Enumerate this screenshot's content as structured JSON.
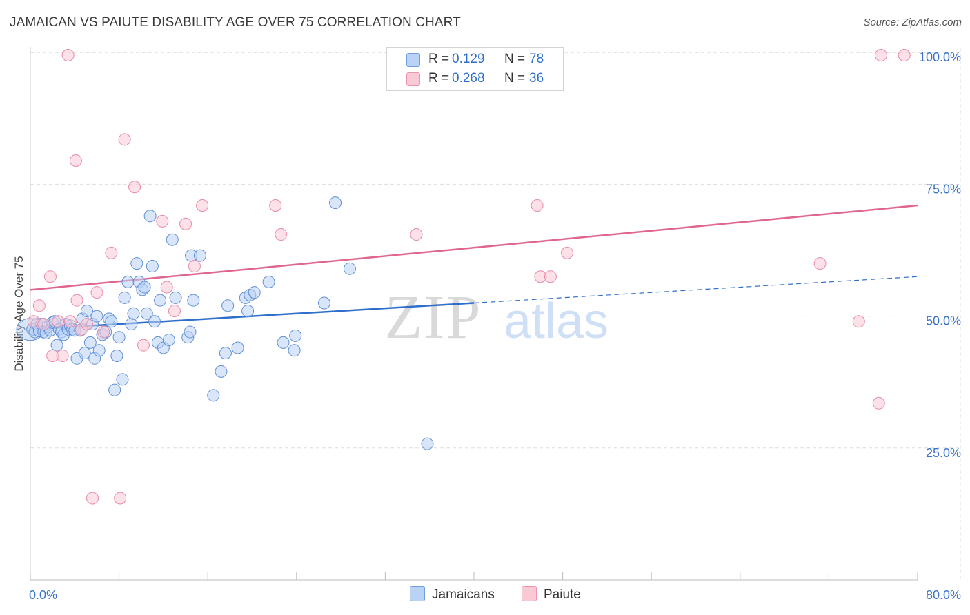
{
  "title": "JAMAICAN VS PAIUTE DISABILITY AGE OVER 75 CORRELATION CHART",
  "source": "Source: ZipAtlas.com",
  "watermark": {
    "zip": "ZIP",
    "atlas": "atlas"
  },
  "legend": {
    "r_label": "R =",
    "n_label": "N =",
    "rows": [
      {
        "r": "0.129",
        "n": "78",
        "fill": "#b9d2f5",
        "stroke": "#6f9ee0"
      },
      {
        "r": "0.268",
        "n": "36",
        "fill": "#f9c9d6",
        "stroke": "#ee95ae"
      }
    ]
  },
  "colors": {
    "jamaicans_fill": "#b9d2f5",
    "jamaicans_stroke": "#5f8fd6",
    "jamaicans_line": "#2f6fcc",
    "paiute_fill": "#f9c9d6",
    "paiute_stroke": "#e88aa6",
    "paiute_line": "#e06690",
    "tick_label": "#3a73c9",
    "grid": "#dddddd"
  },
  "chart_data": {
    "type": "scatter",
    "title": "JAMAICAN VS PAIUTE DISABILITY AGE OVER 75 CORRELATION CHART",
    "xlabel": "",
    "ylabel": "Disability Age Over 75",
    "xlim": [
      0,
      80
    ],
    "ylim": [
      0,
      105
    ],
    "x_tick_labels": [
      "0.0%",
      "80.0%"
    ],
    "y_ticks": [
      25,
      50,
      75,
      100
    ],
    "y_tick_labels": [
      "25.0%",
      "50.0%",
      "75.0%",
      "100.0%"
    ],
    "grid": true,
    "legend_position": "bottom",
    "series": [
      {
        "name": "Jamaicans",
        "r": 0.129,
        "n": 78,
        "trend": {
          "x0": 0,
          "y0": 47.5,
          "x1": 40,
          "y1": 52.5,
          "dashed_to_x": 80,
          "dashed_to_y": 57.5
        },
        "points": [
          [
            0.2,
            47.5
          ],
          [
            0.4,
            47.0
          ],
          [
            0.6,
            48.5
          ],
          [
            0.8,
            47.2
          ],
          [
            1.0,
            48.5
          ],
          [
            1.2,
            47.0
          ],
          [
            1.4,
            46.8
          ],
          [
            1.6,
            48.0
          ],
          [
            1.8,
            47.3
          ],
          [
            2.0,
            48.8
          ],
          [
            2.2,
            49.0
          ],
          [
            2.4,
            44.5
          ],
          [
            2.6,
            47.5
          ],
          [
            2.8,
            47.0
          ],
          [
            3.0,
            46.5
          ],
          [
            3.2,
            48.5
          ],
          [
            3.4,
            47.5
          ],
          [
            3.6,
            48.2
          ],
          [
            3.8,
            47.5
          ],
          [
            4.0,
            47.3
          ],
          [
            4.2,
            42.0
          ],
          [
            4.5,
            47.3
          ],
          [
            4.7,
            49.5
          ],
          [
            4.9,
            43.0
          ],
          [
            5.1,
            51.0
          ],
          [
            5.4,
            45.0
          ],
          [
            5.6,
            48.5
          ],
          [
            5.8,
            42.0
          ],
          [
            6.0,
            50.0
          ],
          [
            6.2,
            43.5
          ],
          [
            6.5,
            46.5
          ],
          [
            6.8,
            47.0
          ],
          [
            7.1,
            49.5
          ],
          [
            7.3,
            49.0
          ],
          [
            7.6,
            36.0
          ],
          [
            7.8,
            42.5
          ],
          [
            8.0,
            46.0
          ],
          [
            8.3,
            38.0
          ],
          [
            8.5,
            53.5
          ],
          [
            8.8,
            56.5
          ],
          [
            9.1,
            48.5
          ],
          [
            9.3,
            50.5
          ],
          [
            9.6,
            60.0
          ],
          [
            9.8,
            56.5
          ],
          [
            10.1,
            55.0
          ],
          [
            10.3,
            55.5
          ],
          [
            10.5,
            50.5
          ],
          [
            10.8,
            69.0
          ],
          [
            11.0,
            59.5
          ],
          [
            11.2,
            49.0
          ],
          [
            11.5,
            45.0
          ],
          [
            11.7,
            53.0
          ],
          [
            12.0,
            44.0
          ],
          [
            12.5,
            45.5
          ],
          [
            12.8,
            64.5
          ],
          [
            13.1,
            53.5
          ],
          [
            14.2,
            46.0
          ],
          [
            14.4,
            47.0
          ],
          [
            14.7,
            53.0
          ],
          [
            14.5,
            61.5
          ],
          [
            15.3,
            61.5
          ],
          [
            16.5,
            35.0
          ],
          [
            17.2,
            39.5
          ],
          [
            17.6,
            43.0
          ],
          [
            17.8,
            52.0
          ],
          [
            18.7,
            44.0
          ],
          [
            19.4,
            53.5
          ],
          [
            19.6,
            51.0
          ],
          [
            19.8,
            54.0
          ],
          [
            20.2,
            54.5
          ],
          [
            21.5,
            56.5
          ],
          [
            22.8,
            45.0
          ],
          [
            23.8,
            43.5
          ],
          [
            23.9,
            46.3
          ],
          [
            26.5,
            52.5
          ],
          [
            27.5,
            71.5
          ],
          [
            28.8,
            59.0
          ],
          [
            35.8,
            25.8
          ]
        ]
      },
      {
        "name": "Paiute",
        "r": 0.268,
        "n": 36,
        "trend": {
          "x0": 0,
          "y0": 55.0,
          "x1": 80,
          "y1": 71.0
        },
        "points": [
          [
            0.3,
            49.0
          ],
          [
            0.8,
            52.0
          ],
          [
            1.2,
            48.5
          ],
          [
            1.8,
            57.5
          ],
          [
            2.0,
            42.5
          ],
          [
            2.5,
            49.0
          ],
          [
            2.9,
            42.5
          ],
          [
            3.6,
            49.0
          ],
          [
            4.1,
            79.5
          ],
          [
            4.2,
            53.0
          ],
          [
            4.6,
            47.5
          ],
          [
            5.1,
            48.5
          ],
          [
            5.6,
            15.5
          ],
          [
            6.0,
            54.5
          ],
          [
            6.6,
            47.0
          ],
          [
            7.3,
            62.0
          ],
          [
            8.1,
            15.5
          ],
          [
            8.5,
            83.5
          ],
          [
            9.4,
            74.5
          ],
          [
            10.2,
            44.5
          ],
          [
            11.9,
            68.0
          ],
          [
            12.3,
            55.5
          ],
          [
            13.0,
            51.0
          ],
          [
            14.0,
            67.5
          ],
          [
            14.8,
            59.5
          ],
          [
            15.5,
            71.0
          ],
          [
            22.1,
            71.0
          ],
          [
            22.6,
            65.5
          ],
          [
            34.8,
            65.5
          ],
          [
            45.7,
            71.0
          ],
          [
            46.0,
            57.5
          ],
          [
            46.9,
            57.5
          ],
          [
            48.4,
            62.0
          ],
          [
            71.2,
            60.0
          ],
          [
            74.7,
            49.0
          ],
          [
            76.5,
            33.5
          ]
        ],
        "edge_points_at_100": [
          3.4,
          76.7,
          78.8
        ]
      }
    ]
  }
}
